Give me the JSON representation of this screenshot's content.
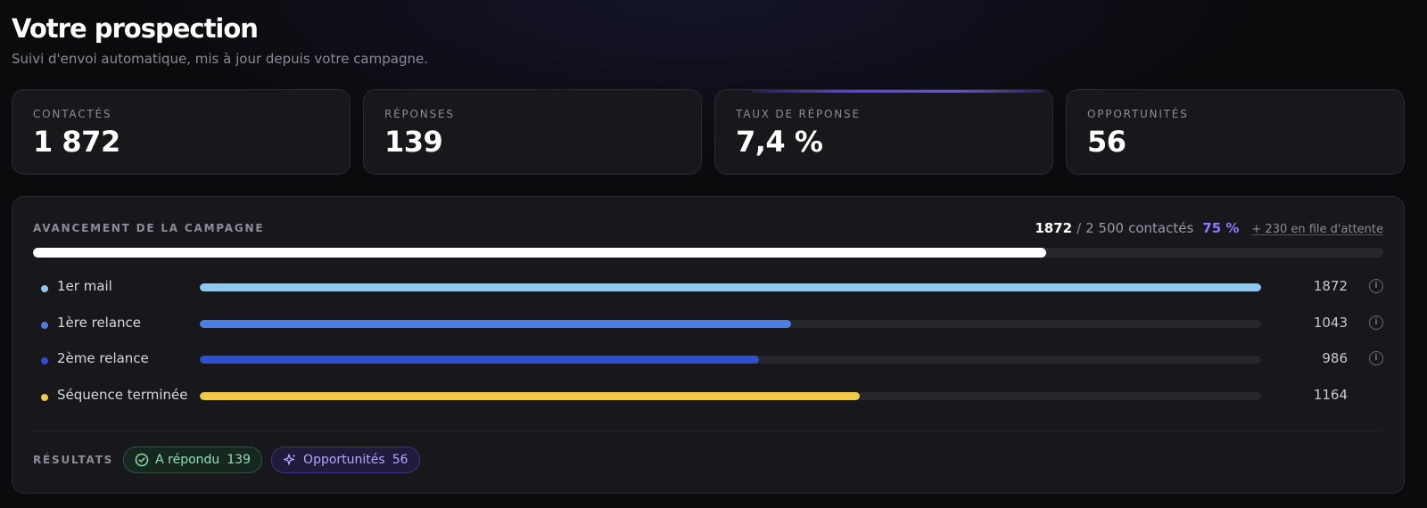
{
  "header": {
    "title": "Votre prospection",
    "subtitle": "Suivi d'envoi automatique, mis à jour depuis votre campagne."
  },
  "stats": [
    {
      "label": "CONTACTÉS",
      "value": "1 872"
    },
    {
      "label": "RÉPONSES",
      "value": "139"
    },
    {
      "label": "TAUX DE RÉPONSE",
      "value": "7,4 %"
    },
    {
      "label": "OPPORTUNITÉS",
      "value": "56"
    }
  ],
  "campaign": {
    "title": "AVANCEMENT DE LA CAMPAGNE",
    "done": "1872",
    "separator": "/",
    "total": "2 500",
    "unit": "contactés",
    "percent_label": "75 %",
    "progress_fraction": 0.75,
    "queue_link": "+ 230 en file d'attente"
  },
  "steps": [
    {
      "label": "1er mail",
      "count": "1872",
      "fraction": 1.0,
      "color": "#8ec8f0",
      "info_icon": "info-icon"
    },
    {
      "label": "1ère relance",
      "count": "1043",
      "fraction": 0.557,
      "color": "#4a7ee0",
      "info_icon": "info-icon"
    },
    {
      "label": "2ème relance",
      "count": "986",
      "fraction": 0.527,
      "color": "#2d4fd0",
      "info_icon": "info-icon"
    },
    {
      "label": "Séquence terminée",
      "count": "1164",
      "fraction": 0.622,
      "color": "#f0c84a",
      "info_icon": ""
    }
  ],
  "results": {
    "label": "RÉSULTATS",
    "chips": [
      {
        "label": "A répondu",
        "count": "139",
        "icon": "check-circle-icon",
        "color": "#8fe0b0"
      },
      {
        "label": "Opportunités",
        "count": "56",
        "icon": "sparkle-icon",
        "color": "#b4a6ff"
      }
    ]
  }
}
